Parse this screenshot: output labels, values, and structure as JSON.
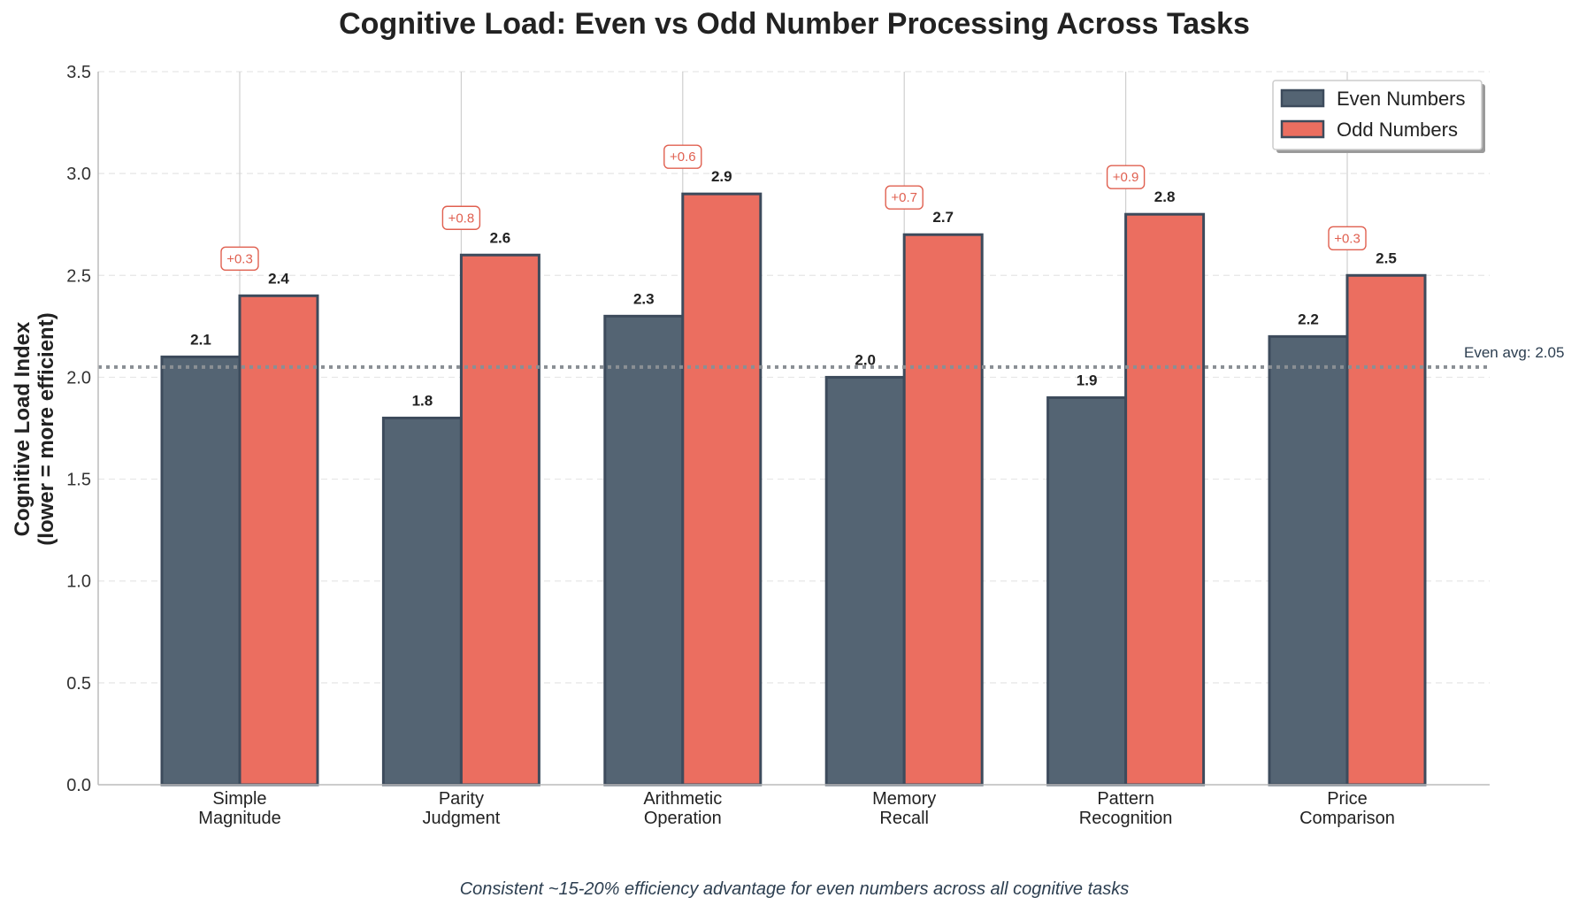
{
  "colors": {
    "even": "#546473",
    "odd": "#eb6e60",
    "bar_edge": "#3d4b5c",
    "diff": "#e06050",
    "avg_line": "#8a8f94"
  },
  "chart_data": {
    "type": "bar",
    "title": "Cognitive Load: Even vs Odd Number Processing Across Tasks",
    "ylabel_line1": "Cognitive Load Index",
    "ylabel_line2": "(lower = more efficient)",
    "xlabel": "",
    "ylim": [
      0,
      3.5
    ],
    "yticks": [
      "0.0",
      "0.5",
      "1.0",
      "1.5",
      "2.0",
      "2.5",
      "3.0",
      "3.5"
    ],
    "categories": [
      [
        "Simple",
        "Magnitude"
      ],
      [
        "Parity",
        "Judgment"
      ],
      [
        "Arithmetic",
        "Operation"
      ],
      [
        "Memory",
        "Recall"
      ],
      [
        "Pattern",
        "Recognition"
      ],
      [
        "Price",
        "Comparison"
      ]
    ],
    "series": [
      {
        "name": "Even Numbers",
        "values": [
          2.1,
          1.8,
          2.3,
          2.0,
          1.9,
          2.2
        ],
        "labels": [
          "2.1",
          "1.8",
          "2.3",
          "2.0",
          "1.9",
          "2.2"
        ]
      },
      {
        "name": "Odd Numbers",
        "values": [
          2.4,
          2.6,
          2.9,
          2.7,
          2.8,
          2.5
        ],
        "labels": [
          "2.4",
          "2.6",
          "2.9",
          "2.7",
          "2.8",
          "2.5"
        ]
      }
    ],
    "differences": [
      "+0.3",
      "+0.8",
      "+0.6",
      "+0.7",
      "+0.9",
      "+0.3"
    ],
    "even_average": {
      "value": 2.05,
      "label": "Even avg: 2.05"
    },
    "legend_position": "top-right",
    "grid": true,
    "caption": "Consistent ~15-20% efficiency advantage for even numbers across all cognitive tasks"
  }
}
